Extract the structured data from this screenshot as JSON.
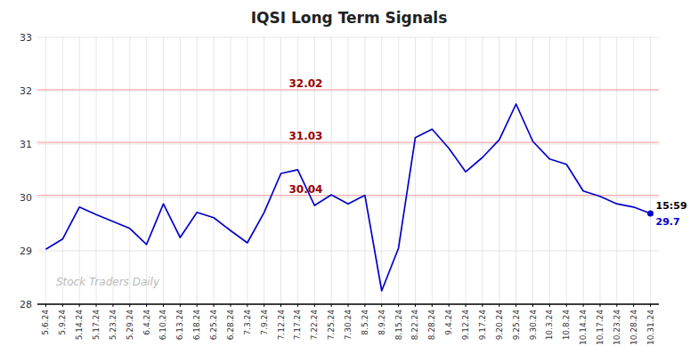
{
  "chart_data": {
    "type": "line",
    "title": "IQSI Long Term Signals",
    "categories": [
      "5.6.24",
      "5.9.24",
      "5.14.24",
      "5.17.24",
      "5.23.24",
      "5.29.24",
      "6.4.24",
      "6.10.24",
      "6.13.24",
      "6.18.24",
      "6.25.24",
      "6.28.24",
      "7.3.24",
      "7.9.24",
      "7.12.24",
      "7.17.24",
      "7.22.24",
      "7.25.24",
      "7.30.24",
      "8.5.24",
      "8.9.24",
      "8.15.24",
      "8.22.24",
      "8.28.24",
      "9.4.24",
      "9.12.24",
      "9.17.24",
      "9.20.24",
      "9.25.24",
      "9.30.24",
      "10.3.24",
      "10.8.24",
      "10.14.24",
      "10.17.24",
      "10.23.24",
      "10.28.24",
      "10.31.24"
    ],
    "values": [
      29.03,
      29.22,
      29.82,
      29.68,
      29.55,
      29.42,
      29.12,
      29.88,
      29.25,
      29.72,
      29.62,
      29.38,
      29.15,
      29.72,
      30.45,
      30.52,
      29.85,
      30.05,
      29.88,
      30.04,
      28.25,
      29.05,
      31.12,
      31.28,
      30.92,
      30.48,
      30.75,
      31.08,
      31.75,
      31.05,
      30.72,
      30.62,
      30.12,
      30.02,
      29.88,
      29.82,
      29.7
    ],
    "color": "#0000cc",
    "hlines": [
      32.02,
      31.03,
      30.04
    ],
    "annotations": [
      {
        "text": "15:59",
        "x": "10.31.24"
      },
      {
        "text": "Stock Traders Daily"
      }
    ],
    "ylim": [
      28.0,
      33.0
    ],
    "yticks": [
      28,
      29,
      30,
      31,
      32,
      33
    ],
    "grid": true
  }
}
